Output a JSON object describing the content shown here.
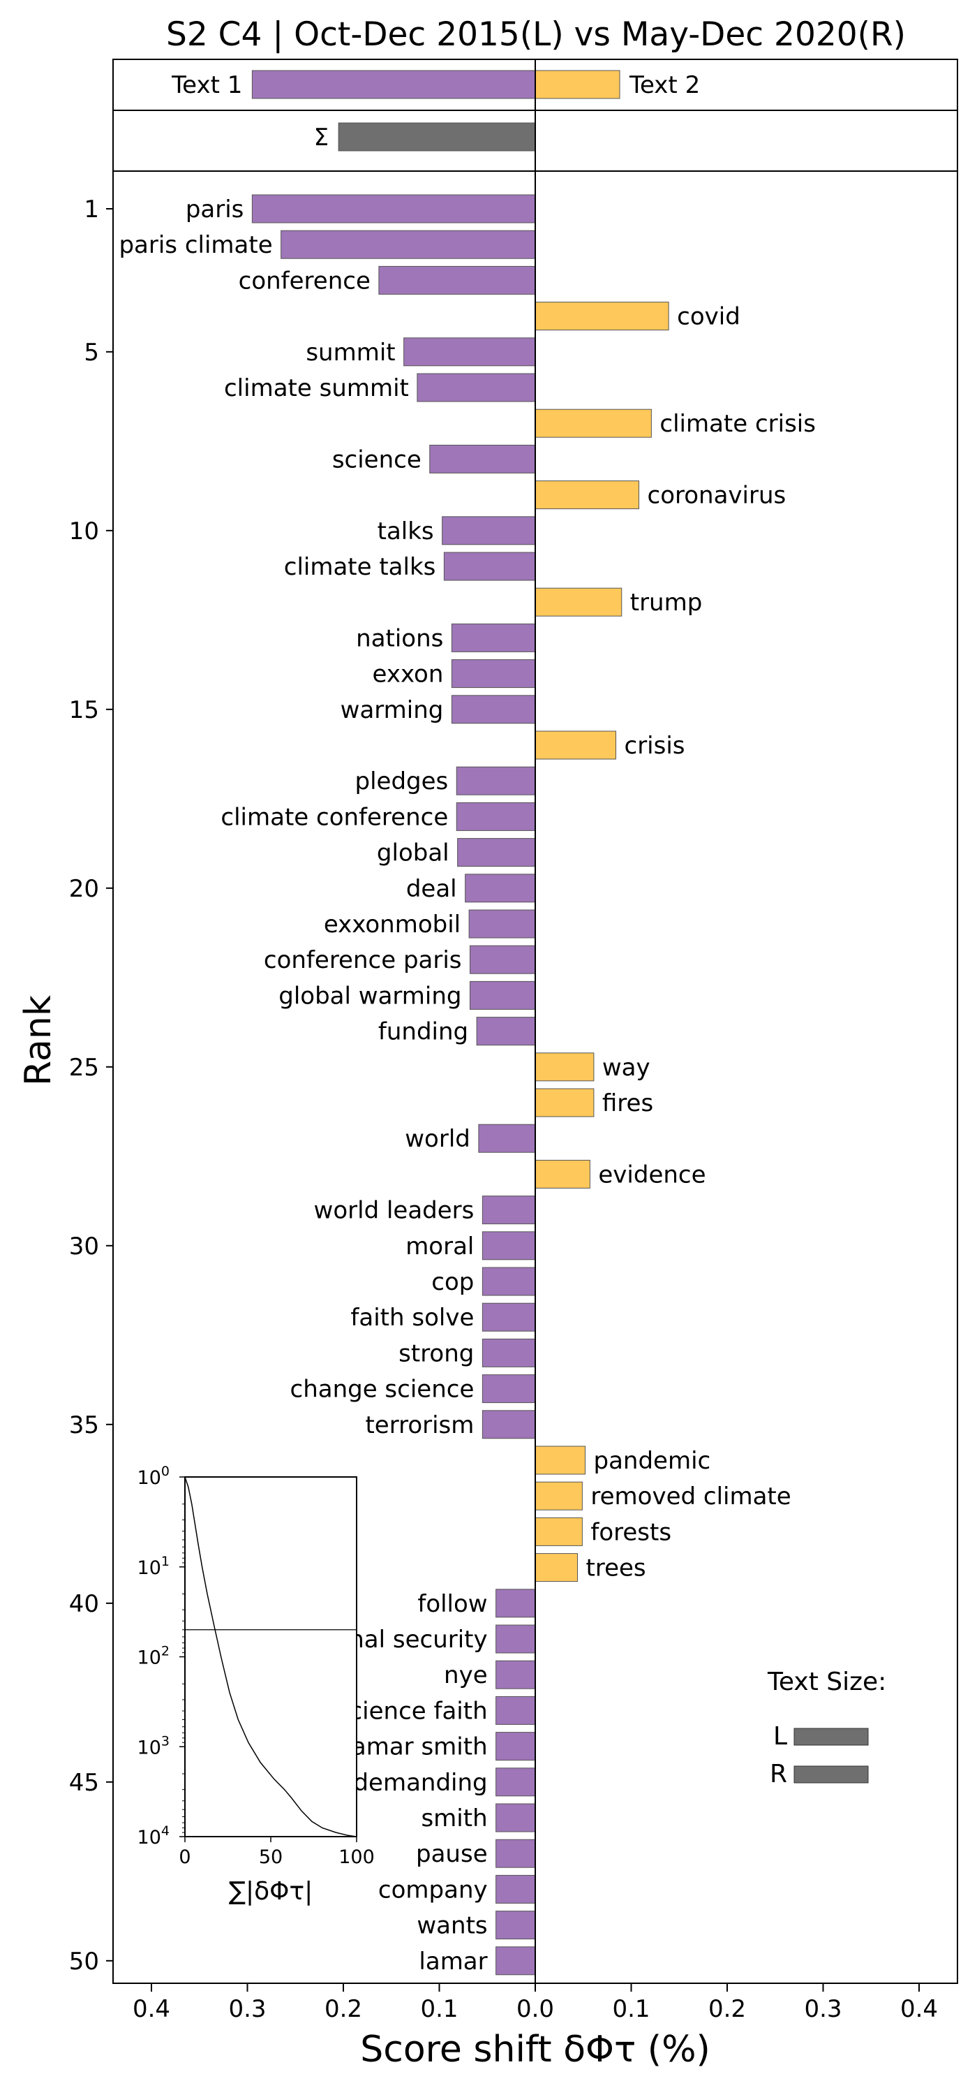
{
  "chart_data": {
    "type": "bar",
    "title": "S2 C4 | Oct-Dec 2015(L) vs May-Dec 2020(R)",
    "xlabel": "Score shift δΦτ (%)",
    "ylabel": "Rank",
    "xlim": [
      -0.44,
      0.44
    ],
    "x_ticks": [
      "0.4",
      "0.3",
      "0.2",
      "0.1",
      "0.0",
      "0.1",
      "0.2",
      "0.3",
      "0.4"
    ],
    "y_ticks": [
      "1",
      "5",
      "10",
      "15",
      "20",
      "25",
      "30",
      "35",
      "40",
      "45",
      "50"
    ],
    "colors": {
      "left": "#9f76b8",
      "right": "#fec85a",
      "sum": "#6f6f6f",
      "edge": "#555555"
    },
    "summary": {
      "text1_label": "Text 1",
      "text2_label": "Text 2",
      "text1_value": -0.295,
      "text2_value": 0.088,
      "sigma_label": "Σ",
      "sigma_value": -0.205
    },
    "words": [
      {
        "rank": 1,
        "word": "paris",
        "value": -0.295
      },
      {
        "rank": 2,
        "word": "paris climate",
        "value": -0.265
      },
      {
        "rank": 3,
        "word": "conference",
        "value": -0.163
      },
      {
        "rank": 4,
        "word": "covid",
        "value": 0.139
      },
      {
        "rank": 5,
        "word": "summit",
        "value": -0.137
      },
      {
        "rank": 6,
        "word": "climate summit",
        "value": -0.123
      },
      {
        "rank": 7,
        "word": "climate crisis",
        "value": 0.121
      },
      {
        "rank": 8,
        "word": "science",
        "value": -0.11
      },
      {
        "rank": 9,
        "word": "coronavirus",
        "value": 0.108
      },
      {
        "rank": 10,
        "word": "talks",
        "value": -0.097
      },
      {
        "rank": 11,
        "word": "climate talks",
        "value": -0.095
      },
      {
        "rank": 12,
        "word": "trump",
        "value": 0.09
      },
      {
        "rank": 13,
        "word": "nations",
        "value": -0.087
      },
      {
        "rank": 14,
        "word": "exxon",
        "value": -0.087
      },
      {
        "rank": 15,
        "word": "warming",
        "value": -0.087
      },
      {
        "rank": 16,
        "word": "crisis",
        "value": 0.084
      },
      {
        "rank": 17,
        "word": "pledges",
        "value": -0.082
      },
      {
        "rank": 18,
        "word": "climate conference",
        "value": -0.082
      },
      {
        "rank": 19,
        "word": "global",
        "value": -0.081
      },
      {
        "rank": 20,
        "word": "deal",
        "value": -0.073
      },
      {
        "rank": 21,
        "word": "exxonmobil",
        "value": -0.069
      },
      {
        "rank": 22,
        "word": "conference paris",
        "value": -0.068
      },
      {
        "rank": 23,
        "word": "global warming",
        "value": -0.068
      },
      {
        "rank": 24,
        "word": "funding",
        "value": -0.061
      },
      {
        "rank": 25,
        "word": "way",
        "value": 0.061
      },
      {
        "rank": 26,
        "word": "fires",
        "value": 0.061
      },
      {
        "rank": 27,
        "word": "world",
        "value": -0.059
      },
      {
        "rank": 28,
        "word": "evidence",
        "value": 0.057
      },
      {
        "rank": 29,
        "word": "world leaders",
        "value": -0.055
      },
      {
        "rank": 30,
        "word": "moral",
        "value": -0.055
      },
      {
        "rank": 31,
        "word": "cop",
        "value": -0.055
      },
      {
        "rank": 32,
        "word": "faith solve",
        "value": -0.055
      },
      {
        "rank": 33,
        "word": "strong",
        "value": -0.055
      },
      {
        "rank": 34,
        "word": "change science",
        "value": -0.055
      },
      {
        "rank": 35,
        "word": "terrorism",
        "value": -0.055
      },
      {
        "rank": 36,
        "word": "pandemic",
        "value": 0.052
      },
      {
        "rank": 37,
        "word": "removed climate",
        "value": 0.049
      },
      {
        "rank": 38,
        "word": "forests",
        "value": 0.049
      },
      {
        "rank": 39,
        "word": "trees",
        "value": 0.044
      },
      {
        "rank": 40,
        "word": "follow",
        "value": -0.041
      },
      {
        "rank": 41,
        "word": "national security",
        "value": -0.041
      },
      {
        "rank": 42,
        "word": "nye",
        "value": -0.041
      },
      {
        "rank": 43,
        "word": "science faith",
        "value": -0.041
      },
      {
        "rank": 44,
        "word": "lamar smith",
        "value": -0.041
      },
      {
        "rank": 45,
        "word": "demanding",
        "value": -0.041
      },
      {
        "rank": 46,
        "word": "smith",
        "value": -0.041
      },
      {
        "rank": 47,
        "word": "pause",
        "value": -0.041
      },
      {
        "rank": 48,
        "word": "company",
        "value": -0.041
      },
      {
        "rank": 49,
        "word": "wants",
        "value": -0.041
      },
      {
        "rank": 50,
        "word": "lamar",
        "value": -0.041
      }
    ],
    "inset": {
      "type": "line",
      "xlabel": "∑|δΦτ|",
      "x_ticks": [
        "0",
        "50",
        "100"
      ],
      "y_tick_labels": [
        {
          "base": "10",
          "exp": "0"
        },
        {
          "base": "10",
          "exp": "1"
        },
        {
          "base": "10",
          "exp": "2"
        },
        {
          "base": "10",
          "exp": "3"
        },
        {
          "base": "10",
          "exp": "4"
        }
      ],
      "xlim": [
        0,
        100
      ],
      "y_log_range": [
        1,
        10000
      ],
      "y_inverted": true,
      "cutoff_rank": 50,
      "curve": [
        [
          0,
          1
        ],
        [
          2,
          1.3
        ],
        [
          4,
          2
        ],
        [
          6,
          3.5
        ],
        [
          8,
          6
        ],
        [
          10,
          10
        ],
        [
          13,
          20
        ],
        [
          17,
          45
        ],
        [
          21,
          100
        ],
        [
          26,
          250
        ],
        [
          31,
          500
        ],
        [
          37,
          900
        ],
        [
          44,
          1500
        ],
        [
          52,
          2300
        ],
        [
          58,
          3000
        ],
        [
          62,
          3700
        ],
        [
          68,
          5200
        ],
        [
          74,
          6800
        ],
        [
          80,
          8000
        ],
        [
          88,
          9000
        ],
        [
          95,
          9700
        ],
        [
          100,
          10000
        ]
      ]
    },
    "legend": {
      "title": "Text Size:",
      "entries": [
        {
          "label": "L",
          "fraction": 1.0
        },
        {
          "label": "R",
          "fraction": 1.0
        }
      ]
    }
  }
}
